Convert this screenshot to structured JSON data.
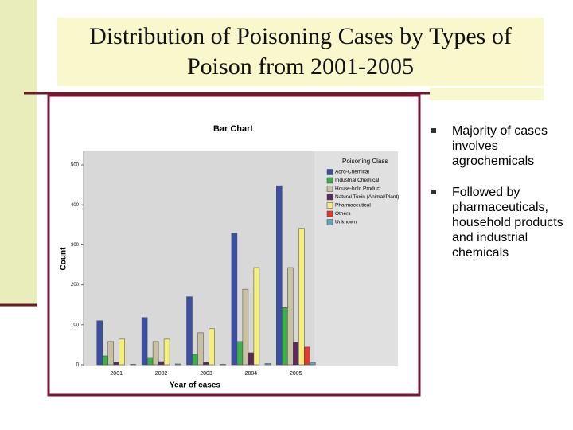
{
  "slide": {
    "title": "Distribution of Poisoning Cases by Types of Poison from 2001-2005",
    "bullets": [
      "Majority of cases involves agrochemicals",
      "Followed by pharmaceuticals, household products and industrial chemicals"
    ]
  },
  "chart_data": {
    "type": "bar",
    "title": "Bar Chart",
    "x_label": "Year of cases",
    "y_label": "Count",
    "legend_title": "Poisoning Class",
    "legend_position": "right",
    "categories": [
      "2001",
      "2002",
      "2003",
      "2004",
      "2005"
    ],
    "series": [
      {
        "name": "Agro-Chemical",
        "color": "#3a4ea6",
        "values": [
          110,
          118,
          170,
          329,
          448
        ]
      },
      {
        "name": "Industrial Chemical",
        "color": "#3bb04b",
        "values": [
          22,
          18,
          26,
          58,
          143
        ]
      },
      {
        "name": "House-hold Product",
        "color": "#c9c2a2",
        "values": [
          58,
          58,
          80,
          189,
          243
        ]
      },
      {
        "name": "Natural Toxin (Animal/Plant)",
        "color": "#5b2b5c",
        "values": [
          6,
          8,
          6,
          30,
          56
        ]
      },
      {
        "name": "Pharmaceutical",
        "color": "#f4ef7a",
        "values": [
          64,
          64,
          90,
          243,
          341
        ]
      },
      {
        "name": "Others",
        "color": "#e2392b",
        "values": [
          0,
          0,
          0,
          0,
          44
        ]
      },
      {
        "name": "Unknown",
        "color": "#5aa9b9",
        "values": [
          1,
          2,
          1,
          3,
          6
        ]
      }
    ],
    "ylim": [
      0,
      500
    ],
    "yticks": [
      0,
      100,
      200,
      300,
      400,
      500
    ],
    "grid": false
  }
}
